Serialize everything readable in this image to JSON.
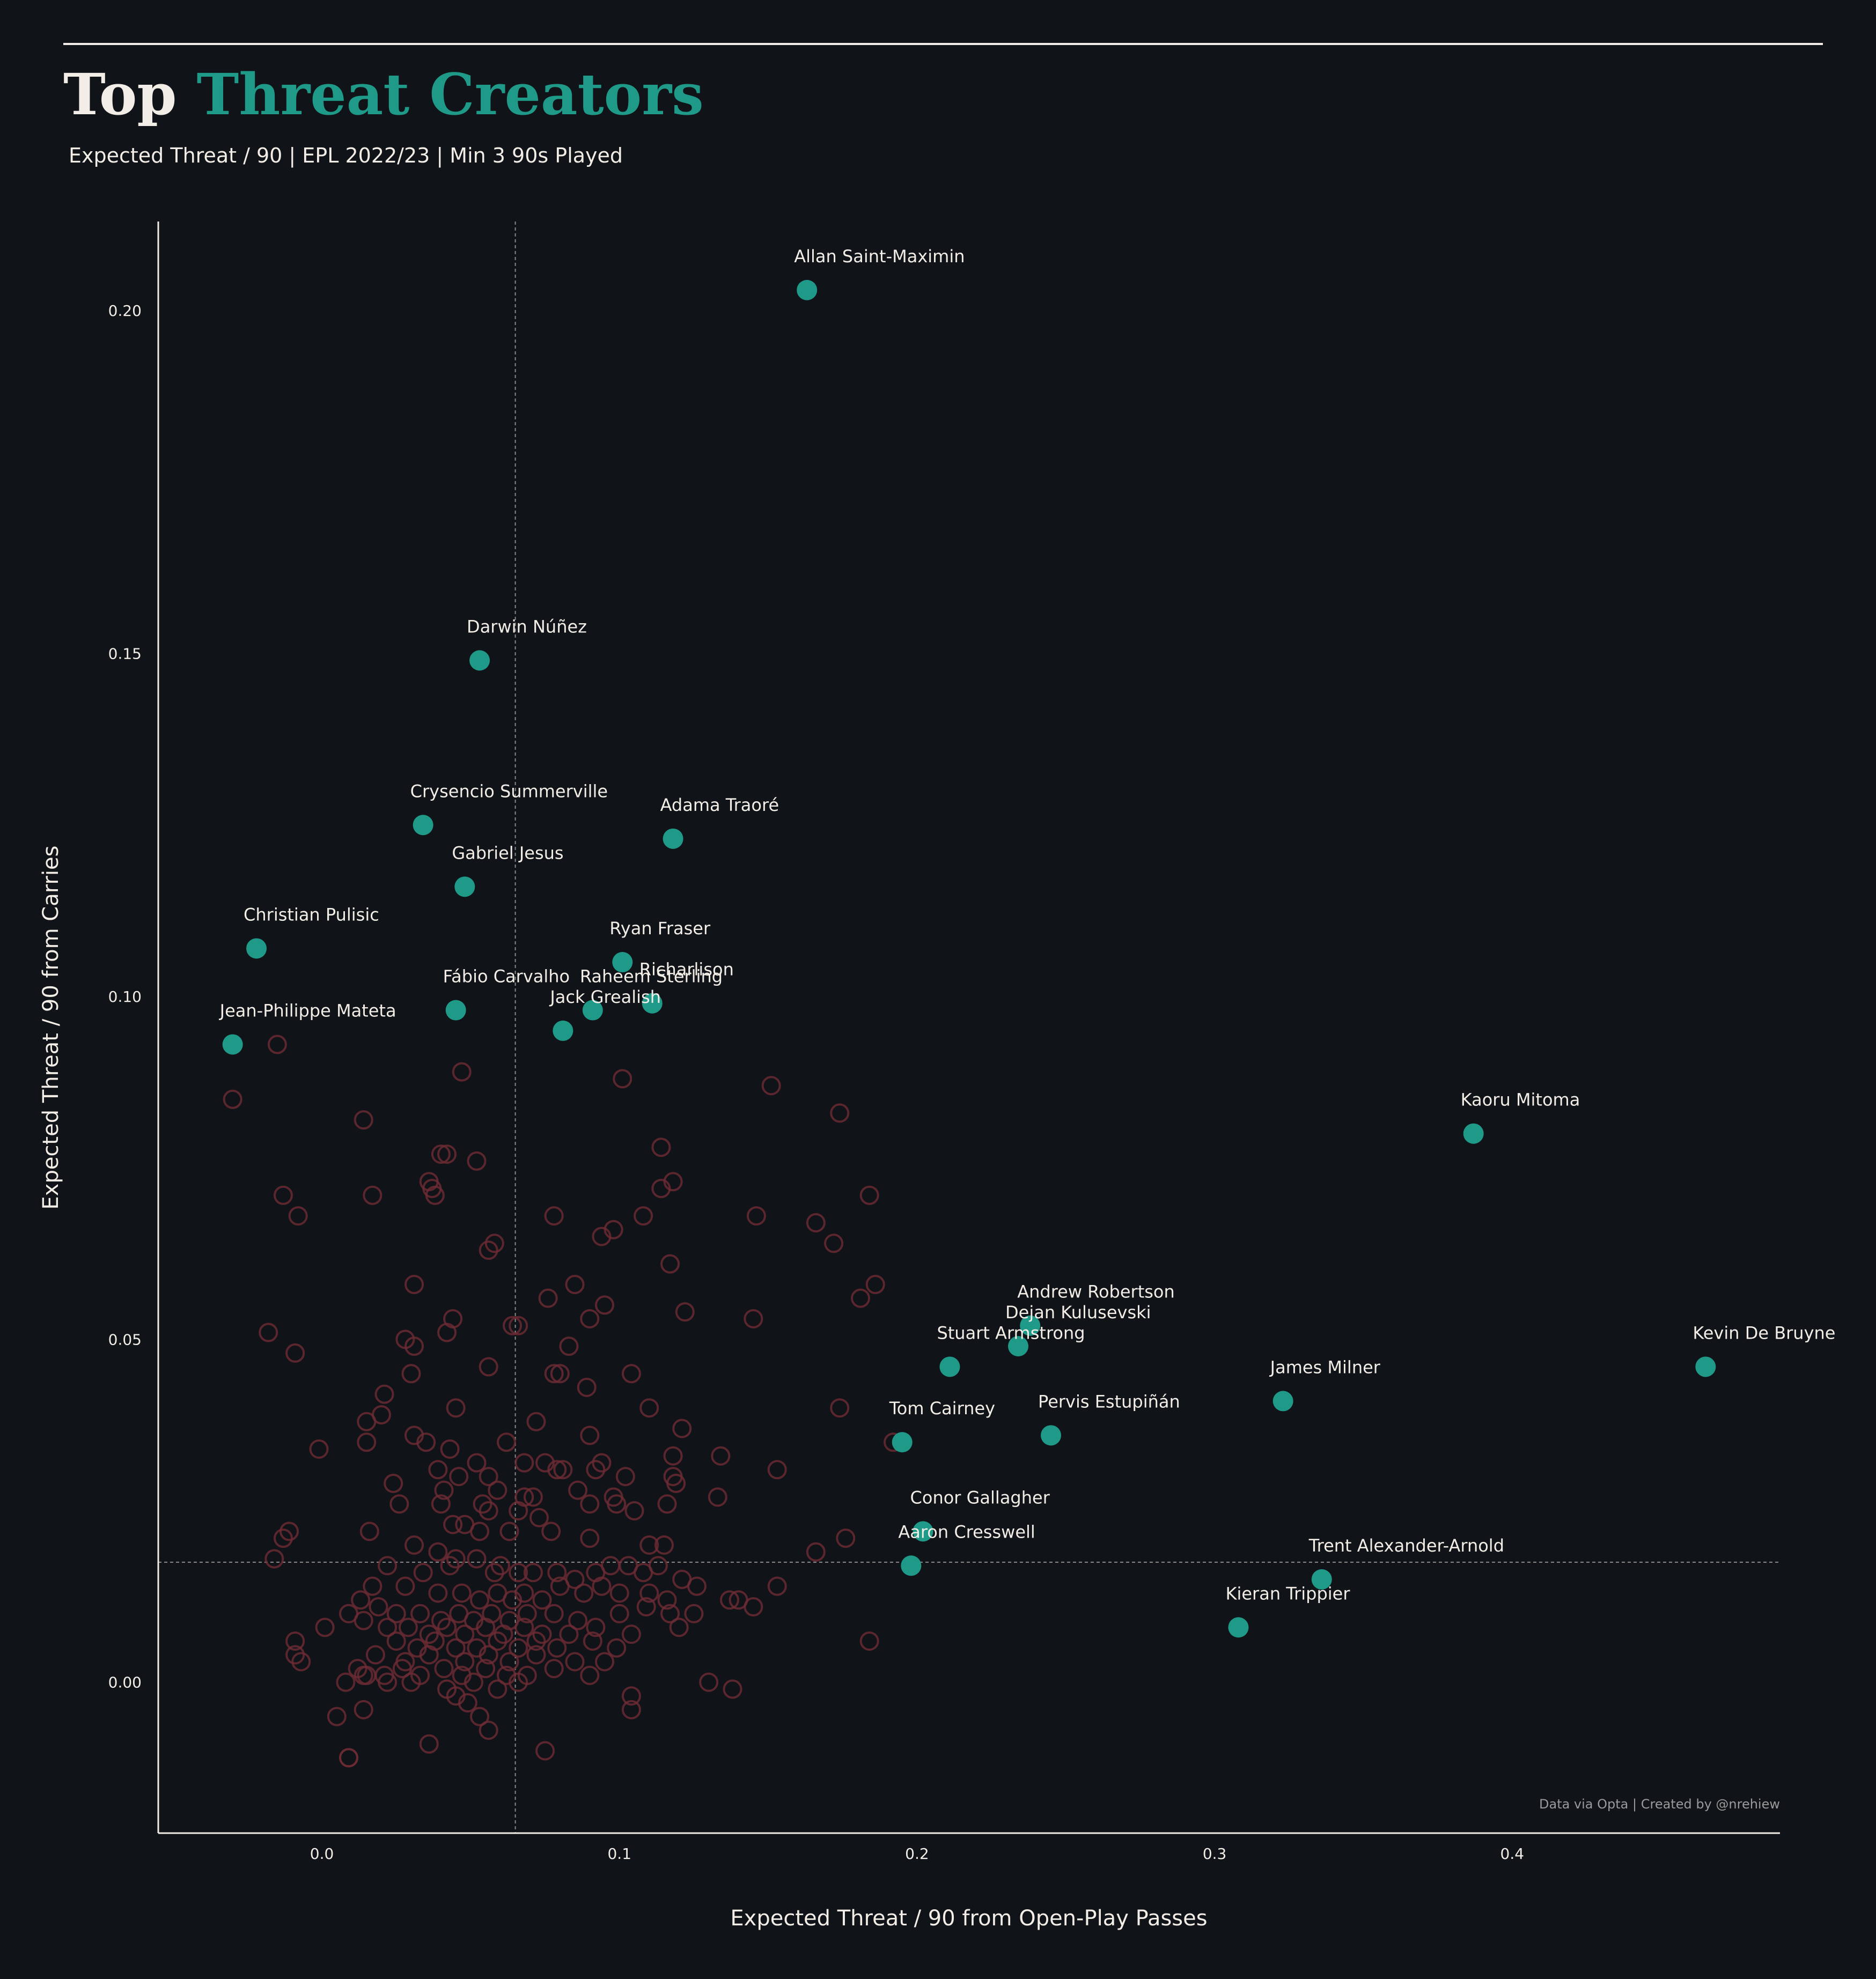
{
  "header": {
    "title_part1": "Top",
    "title_part2": "Threat Creators",
    "subtitle": "Expected Threat / 90  |  EPL 2022/23  |  Min 3 90s Played"
  },
  "colors": {
    "background": "#101318",
    "highlight": "#1f9a89",
    "other_players": "#6e2c34",
    "text": "#f2ede6"
  },
  "chart_data": {
    "type": "scatter",
    "xlabel": "Expected Threat / 90 from Open-Play Passes",
    "ylabel": "Expected Threat / 90 from Carries",
    "xlim": [
      -0.055,
      0.49
    ],
    "ylim": [
      -0.022,
      0.213
    ],
    "xticks": [
      "0.0",
      "0.1",
      "0.2",
      "0.3",
      "0.4"
    ],
    "yticks": [
      "0.00",
      "0.05",
      "0.10",
      "0.15",
      "0.20"
    ],
    "reference_lines": {
      "x_mean": 0.065,
      "y_mean": 0.0175
    },
    "credit": "Data via Opta | Created by @nrehiew",
    "highlighted": [
      {
        "name": "Allan Saint-Maximin",
        "x": 0.163,
        "y": 0.203
      },
      {
        "name": "Darwin Núñez",
        "x": 0.053,
        "y": 0.149
      },
      {
        "name": "Crysencio Summerville",
        "x": 0.034,
        "y": 0.125
      },
      {
        "name": "Adama Traoré",
        "x": 0.118,
        "y": 0.123
      },
      {
        "name": "Gabriel Jesus",
        "x": 0.048,
        "y": 0.116
      },
      {
        "name": "Christian Pulisic",
        "x": -0.022,
        "y": 0.107
      },
      {
        "name": "Ryan Fraser",
        "x": 0.101,
        "y": 0.105
      },
      {
        "name": "Richarlison",
        "x": 0.111,
        "y": 0.099
      },
      {
        "name": "Fábio Carvalho",
        "x": 0.045,
        "y": 0.098
      },
      {
        "name": "Raheem Sterling",
        "x": 0.091,
        "y": 0.098
      },
      {
        "name": "Jack Grealish",
        "x": 0.081,
        "y": 0.095
      },
      {
        "name": "Jean-Philippe Mateta",
        "x": -0.03,
        "y": 0.093
      },
      {
        "name": "Kaoru Mitoma",
        "x": 0.387,
        "y": 0.08
      },
      {
        "name": "Andrew Robertson",
        "x": 0.238,
        "y": 0.052
      },
      {
        "name": "Dejan Kulusevski",
        "x": 0.234,
        "y": 0.049
      },
      {
        "name": "Stuart Armstrong",
        "x": 0.211,
        "y": 0.046
      },
      {
        "name": "Kevin De Bruyne",
        "x": 0.465,
        "y": 0.046
      },
      {
        "name": "James Milner",
        "x": 0.323,
        "y": 0.041
      },
      {
        "name": "Pervis Estupiñán",
        "x": 0.245,
        "y": 0.036
      },
      {
        "name": "Tom Cairney",
        "x": 0.195,
        "y": 0.035
      },
      {
        "name": "Conor Gallagher",
        "x": 0.202,
        "y": 0.022
      },
      {
        "name": "Aaron Cresswell",
        "x": 0.198,
        "y": 0.017
      },
      {
        "name": "Trent Alexander-Arnold",
        "x": 0.336,
        "y": 0.015
      },
      {
        "name": "Kieran Trippier",
        "x": 0.308,
        "y": 0.008
      }
    ],
    "others": [
      [
        -0.015,
        0.093
      ],
      [
        -0.03,
        0.085
      ],
      [
        0.014,
        0.082
      ],
      [
        0.017,
        0.071
      ],
      [
        -0.013,
        0.071
      ],
      [
        -0.008,
        0.068
      ],
      [
        0.04,
        0.077
      ],
      [
        0.042,
        0.077
      ],
      [
        0.052,
        0.076
      ],
      [
        0.036,
        0.073
      ],
      [
        0.037,
        0.072
      ],
      [
        0.038,
        0.071
      ],
      [
        0.047,
        0.089
      ],
      [
        0.101,
        0.088
      ],
      [
        0.151,
        0.087
      ],
      [
        0.174,
        0.083
      ],
      [
        0.114,
        0.078
      ],
      [
        0.118,
        0.073
      ],
      [
        0.114,
        0.072
      ],
      [
        0.184,
        0.071
      ],
      [
        0.146,
        0.068
      ],
      [
        0.078,
        0.068
      ],
      [
        0.108,
        0.068
      ],
      [
        0.166,
        0.067
      ],
      [
        0.098,
        0.066
      ],
      [
        0.094,
        0.065
      ],
      [
        0.058,
        0.064
      ],
      [
        0.056,
        0.063
      ],
      [
        0.172,
        0.064
      ],
      [
        0.117,
        0.061
      ],
      [
        0.031,
        0.058
      ],
      [
        0.085,
        0.058
      ],
      [
        0.186,
        0.058
      ],
      [
        0.076,
        0.056
      ],
      [
        0.095,
        0.055
      ],
      [
        0.181,
        0.056
      ],
      [
        0.122,
        0.054
      ],
      [
        0.044,
        0.053
      ],
      [
        0.064,
        0.052
      ],
      [
        0.066,
        0.052
      ],
      [
        0.09,
        0.053
      ],
      [
        0.145,
        0.053
      ],
      [
        0.042,
        0.051
      ],
      [
        -0.018,
        0.051
      ],
      [
        0.028,
        0.05
      ],
      [
        0.031,
        0.049
      ],
      [
        0.083,
        0.049
      ],
      [
        -0.009,
        0.048
      ],
      [
        0.03,
        0.045
      ],
      [
        0.056,
        0.046
      ],
      [
        0.08,
        0.045
      ],
      [
        0.078,
        0.045
      ],
      [
        0.104,
        0.045
      ],
      [
        0.089,
        0.043
      ],
      [
        0.021,
        0.042
      ],
      [
        0.045,
        0.04
      ],
      [
        0.11,
        0.04
      ],
      [
        0.174,
        0.04
      ],
      [
        0.02,
        0.039
      ],
      [
        0.015,
        0.038
      ],
      [
        0.072,
        0.038
      ],
      [
        0.121,
        0.037
      ],
      [
        0.031,
        0.036
      ],
      [
        0.015,
        0.035
      ],
      [
        0.035,
        0.035
      ],
      [
        0.062,
        0.035
      ],
      [
        0.09,
        0.036
      ],
      [
        0.192,
        0.035
      ],
      [
        -0.001,
        0.034
      ],
      [
        0.043,
        0.034
      ],
      [
        0.134,
        0.033
      ],
      [
        0.118,
        0.033
      ],
      [
        0.068,
        0.032
      ],
      [
        0.075,
        0.032
      ],
      [
        0.079,
        0.031
      ],
      [
        0.081,
        0.031
      ],
      [
        0.092,
        0.031
      ],
      [
        0.094,
        0.032
      ],
      [
        0.052,
        0.032
      ],
      [
        0.039,
        0.031
      ],
      [
        0.046,
        0.03
      ],
      [
        0.056,
        0.03
      ],
      [
        0.102,
        0.03
      ],
      [
        0.118,
        0.03
      ],
      [
        0.119,
        0.029
      ],
      [
        0.153,
        0.031
      ],
      [
        0.024,
        0.029
      ],
      [
        0.041,
        0.028
      ],
      [
        0.059,
        0.028
      ],
      [
        0.068,
        0.027
      ],
      [
        0.071,
        0.027
      ],
      [
        0.086,
        0.028
      ],
      [
        0.098,
        0.027
      ],
      [
        0.026,
        0.026
      ],
      [
        0.04,
        0.026
      ],
      [
        0.054,
        0.026
      ],
      [
        0.056,
        0.025
      ],
      [
        0.066,
        0.025
      ],
      [
        0.073,
        0.024
      ],
      [
        0.09,
        0.026
      ],
      [
        0.099,
        0.026
      ],
      [
        0.105,
        0.025
      ],
      [
        0.116,
        0.026
      ],
      [
        0.133,
        0.027
      ],
      [
        0.044,
        0.023
      ],
      [
        0.048,
        0.023
      ],
      [
        0.053,
        0.022
      ],
      [
        0.063,
        0.022
      ],
      [
        0.077,
        0.022
      ],
      [
        0.016,
        0.022
      ],
      [
        -0.011,
        0.022
      ],
      [
        -0.013,
        0.021
      ],
      [
        0.09,
        0.021
      ],
      [
        0.11,
        0.02
      ],
      [
        0.115,
        0.02
      ],
      [
        0.031,
        0.02
      ],
      [
        0.039,
        0.019
      ],
      [
        0.045,
        0.018
      ],
      [
        0.052,
        0.018
      ],
      [
        0.06,
        0.017
      ],
      [
        0.166,
        0.019
      ],
      [
        0.176,
        0.021
      ],
      [
        -0.016,
        0.018
      ],
      [
        0.022,
        0.017
      ],
      [
        0.034,
        0.016
      ],
      [
        0.043,
        0.017
      ],
      [
        0.058,
        0.016
      ],
      [
        0.066,
        0.016
      ],
      [
        0.071,
        0.016
      ],
      [
        0.079,
        0.016
      ],
      [
        0.085,
        0.015
      ],
      [
        0.092,
        0.016
      ],
      [
        0.097,
        0.017
      ],
      [
        0.103,
        0.017
      ],
      [
        0.108,
        0.016
      ],
      [
        0.113,
        0.017
      ],
      [
        0.121,
        0.015
      ],
      [
        0.126,
        0.014
      ],
      [
        0.017,
        0.014
      ],
      [
        0.028,
        0.014
      ],
      [
        0.039,
        0.013
      ],
      [
        0.047,
        0.013
      ],
      [
        0.053,
        0.012
      ],
      [
        0.059,
        0.013
      ],
      [
        0.064,
        0.012
      ],
      [
        0.068,
        0.013
      ],
      [
        0.074,
        0.012
      ],
      [
        0.08,
        0.014
      ],
      [
        0.088,
        0.013
      ],
      [
        0.094,
        0.014
      ],
      [
        0.1,
        0.013
      ],
      [
        0.11,
        0.013
      ],
      [
        0.116,
        0.012
      ],
      [
        0.137,
        0.012
      ],
      [
        0.14,
        0.012
      ],
      [
        0.153,
        0.014
      ],
      [
        0.013,
        0.012
      ],
      [
        0.019,
        0.011
      ],
      [
        0.025,
        0.01
      ],
      [
        0.033,
        0.01
      ],
      [
        0.04,
        0.009
      ],
      [
        0.046,
        0.01
      ],
      [
        0.051,
        0.009
      ],
      [
        0.057,
        0.01
      ],
      [
        0.063,
        0.009
      ],
      [
        0.069,
        0.01
      ],
      [
        0.078,
        0.01
      ],
      [
        0.086,
        0.009
      ],
      [
        0.1,
        0.01
      ],
      [
        0.109,
        0.011
      ],
      [
        0.117,
        0.01
      ],
      [
        0.125,
        0.01
      ],
      [
        0.145,
        0.011
      ],
      [
        0.009,
        0.01
      ],
      [
        0.014,
        0.009
      ],
      [
        0.022,
        0.008
      ],
      [
        0.029,
        0.008
      ],
      [
        0.036,
        0.007
      ],
      [
        0.042,
        0.008
      ],
      [
        0.048,
        0.007
      ],
      [
        0.055,
        0.008
      ],
      [
        0.061,
        0.007
      ],
      [
        0.068,
        0.008
      ],
      [
        0.074,
        0.007
      ],
      [
        0.083,
        0.007
      ],
      [
        0.092,
        0.008
      ],
      [
        0.104,
        0.007
      ],
      [
        0.12,
        0.008
      ],
      [
        -0.009,
        0.006
      ],
      [
        0.001,
        0.008
      ],
      [
        0.025,
        0.006
      ],
      [
        0.032,
        0.005
      ],
      [
        0.038,
        0.006
      ],
      [
        0.045,
        0.005
      ],
      [
        0.052,
        0.005
      ],
      [
        0.059,
        0.006
      ],
      [
        0.066,
        0.005
      ],
      [
        0.072,
        0.006
      ],
      [
        0.079,
        0.005
      ],
      [
        0.091,
        0.006
      ],
      [
        0.099,
        0.005
      ],
      [
        0.184,
        0.006
      ],
      [
        -0.009,
        0.004
      ],
      [
        -0.007,
        0.003
      ],
      [
        0.018,
        0.004
      ],
      [
        0.028,
        0.003
      ],
      [
        0.036,
        0.004
      ],
      [
        0.048,
        0.003
      ],
      [
        0.056,
        0.004
      ],
      [
        0.063,
        0.003
      ],
      [
        0.072,
        0.004
      ],
      [
        0.085,
        0.003
      ],
      [
        0.095,
        0.003
      ],
      [
        0.012,
        0.002
      ],
      [
        0.015,
        0.001
      ],
      [
        0.021,
        0.001
      ],
      [
        0.027,
        0.002
      ],
      [
        0.033,
        0.001
      ],
      [
        0.041,
        0.002
      ],
      [
        0.047,
        0.001
      ],
      [
        0.055,
        0.002
      ],
      [
        0.062,
        0.001
      ],
      [
        0.069,
        0.001
      ],
      [
        0.078,
        0.002
      ],
      [
        0.09,
        0.001
      ],
      [
        0.008,
        0.0
      ],
      [
        0.014,
        0.001
      ],
      [
        0.022,
        0.0
      ],
      [
        0.03,
        0.0
      ],
      [
        0.042,
        -0.001
      ],
      [
        0.051,
        0.0
      ],
      [
        0.059,
        -0.001
      ],
      [
        0.066,
        0.0
      ],
      [
        0.13,
        0.0
      ],
      [
        0.138,
        -0.001
      ],
      [
        0.104,
        -0.002
      ],
      [
        0.045,
        -0.002
      ],
      [
        0.014,
        -0.004
      ],
      [
        0.005,
        -0.005
      ],
      [
        0.049,
        -0.003
      ],
      [
        0.053,
        -0.005
      ],
      [
        0.104,
        -0.004
      ],
      [
        0.056,
        -0.007
      ],
      [
        0.036,
        -0.009
      ],
      [
        0.009,
        -0.011
      ],
      [
        0.075,
        -0.01
      ],
      [
        0.009,
        -0.011
      ]
    ]
  }
}
